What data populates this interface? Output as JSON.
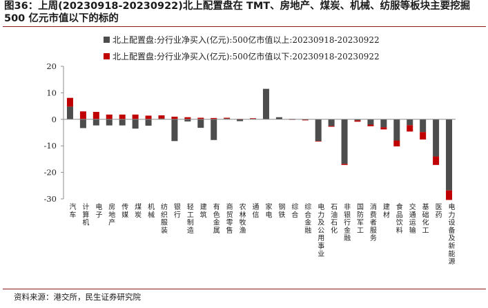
{
  "title": "图36：上周(20230918-20230922)北上配置盘在 TMT、房地产、煤炭、机械、纺服等板块主要挖掘 500 亿元市值以下的标的",
  "source": "资料来源：港交所，民生证券研究院",
  "colors": {
    "large": "#4d4d4d",
    "small": "#c00000",
    "rule": "#8a1c1c"
  },
  "chart_data": {
    "type": "bar",
    "stacked": true,
    "ylim": [
      -30,
      20
    ],
    "yticks": [
      20,
      10,
      0,
      -10,
      -20,
      -30
    ],
    "legend_position": "top",
    "grid": false,
    "categories": [
      "汽车",
      "计算机",
      "电子",
      "房地产",
      "传媒",
      "煤炭",
      "机械",
      "纺织服装",
      "银行",
      "轻工制造",
      "建筑",
      "有色金属",
      "商贸零售",
      "农林牧渔",
      "通信",
      "家电",
      "钢铁",
      "综合",
      "综合金融",
      "电力及公用事业",
      "石油石化",
      "非银行金融",
      "国防军工",
      "消费者服务",
      "建材",
      "食品饮料",
      "交通运输",
      "基础化工",
      "医药",
      "电力设备及新能源"
    ],
    "series": [
      {
        "name": "北上配置盘:分行业净买入(亿元):500亿市值以上:20230918-20230922",
        "values": [
          4.8,
          -3.3,
          -2.3,
          -2.3,
          -2.3,
          -3.5,
          -2.4,
          0.3,
          -8.2,
          -0.8,
          -3.2,
          -7.8,
          0.3,
          -0.7,
          0.2,
          11.5,
          0.8,
          0.2,
          -0.2,
          -8.2,
          -2.5,
          -16.8,
          -0.4,
          -2.0,
          -3.0,
          -8.0,
          -2.2,
          -4.8,
          -14.0,
          -26.8
        ]
      },
      {
        "name": "北上配置盘:分行业净买入(亿元):500亿市值以下:20230918-20230922",
        "values": [
          3.3,
          3.0,
          2.8,
          1.8,
          1.8,
          1.8,
          1.4,
          1.2,
          1.0,
          0.8,
          0.6,
          0.5,
          0.3,
          0.2,
          0.2,
          0.0,
          0.0,
          -0.1,
          -0.2,
          -0.2,
          -0.3,
          -0.4,
          -0.5,
          -0.6,
          -0.8,
          -2.2,
          -2.4,
          -2.8,
          -3.2,
          -3.6
        ]
      }
    ]
  }
}
